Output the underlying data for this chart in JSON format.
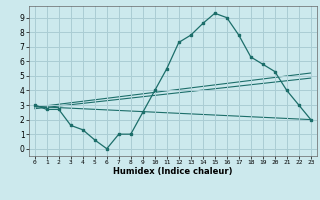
{
  "xlabel": "Humidex (Indice chaleur)",
  "background_color": "#cce9ed",
  "grid_color": "#aacdd4",
  "line_color": "#1c6e6a",
  "xlim": [
    -0.5,
    23.5
  ],
  "ylim": [
    -0.5,
    9.8
  ],
  "xticks": [
    0,
    1,
    2,
    3,
    4,
    5,
    6,
    7,
    8,
    9,
    10,
    11,
    12,
    13,
    14,
    15,
    16,
    17,
    18,
    19,
    20,
    21,
    22,
    23
  ],
  "yticks": [
    0,
    1,
    2,
    3,
    4,
    5,
    6,
    7,
    8,
    9
  ],
  "curve1_x": [
    0,
    1,
    2,
    3,
    4,
    5,
    6,
    7,
    8,
    9,
    10,
    11,
    12,
    13,
    14,
    15,
    16,
    17,
    18,
    19,
    20,
    21,
    22,
    23
  ],
  "curve1_y": [
    3.0,
    2.7,
    2.7,
    1.6,
    1.3,
    0.6,
    0.0,
    1.0,
    1.0,
    2.5,
    4.0,
    5.5,
    7.3,
    7.8,
    8.6,
    9.3,
    9.0,
    7.8,
    6.3,
    5.8,
    5.3,
    4.0,
    3.0,
    2.0
  ],
  "line1_x": [
    0,
    23
  ],
  "line1_y": [
    2.9,
    2.0
  ],
  "line2_x": [
    0,
    23
  ],
  "line2_y": [
    2.85,
    5.2
  ],
  "line3_x": [
    0,
    23
  ],
  "line3_y": [
    2.75,
    4.85
  ]
}
